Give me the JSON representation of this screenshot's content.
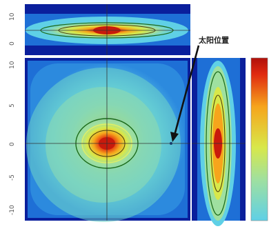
{
  "chart_data": {
    "type": "heatmap",
    "title": "",
    "panels": [
      {
        "name": "top-projection",
        "profile": "horizontal-elongated",
        "peak": 1.0
      },
      {
        "name": "main-distribution",
        "profile": "central-blob",
        "peak": 1.0
      },
      {
        "name": "side-projection",
        "profile": "vertical-elongated",
        "peak": 1.0
      }
    ],
    "y_tick_labels": [
      "10",
      "5",
      "0",
      "-5",
      "-10"
    ],
    "top_panel_tick_labels": [
      "10",
      "0"
    ],
    "annotation": {
      "text": "太阳位置"
    },
    "colormap": [
      "#0a1f9c",
      "#1e6fd6",
      "#5fd0e6",
      "#9fe0a0",
      "#d8e84a",
      "#f6a51c",
      "#e02a10",
      "#b0100a"
    ],
    "grid": true,
    "legend": "colorbar-right"
  }
}
